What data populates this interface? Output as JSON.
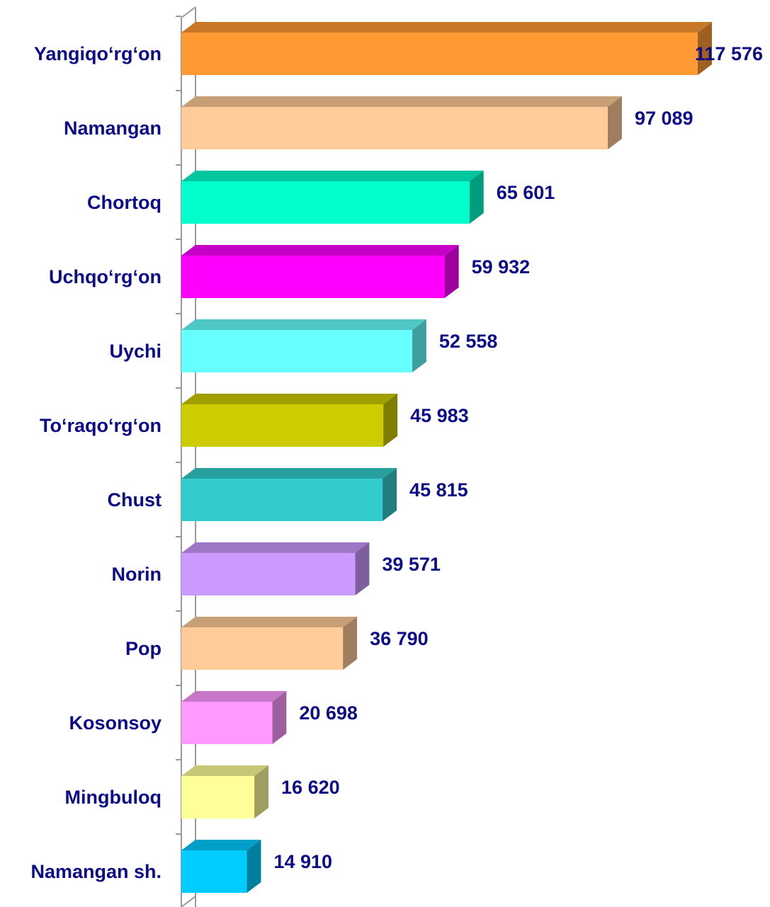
{
  "chart_data": {
    "type": "bar3d_horizontal",
    "categories": [
      "Yangiqo‘rg‘on",
      "Namangan",
      "Chortoq",
      "Uchqo‘rg‘on",
      "Uychi",
      "To‘raqo‘rg‘on",
      "Chust",
      "Norin",
      "Pop",
      "Kosonsoy",
      "Mingbuloq",
      "Namangan sh."
    ],
    "values": [
      117576,
      97089,
      65601,
      59932,
      52558,
      45983,
      45815,
      39571,
      36790,
      20698,
      16620,
      14910
    ],
    "value_labels": [
      "117 576",
      "97 089",
      "65 601",
      "59 932",
      "52 558",
      "45 983",
      "45 815",
      "39 571",
      "36 790",
      "20 698",
      "16 620",
      "14 910"
    ],
    "colors": [
      "#ff9933",
      "#ffcc99",
      "#00ffcc",
      "#ff00ff",
      "#66ffff",
      "#cccc00",
      "#33cccc",
      "#cc99ff",
      "#ffcc99",
      "#ff99ff",
      "#ffff99",
      "#00ccff"
    ],
    "xlim": [
      0,
      120000
    ]
  }
}
